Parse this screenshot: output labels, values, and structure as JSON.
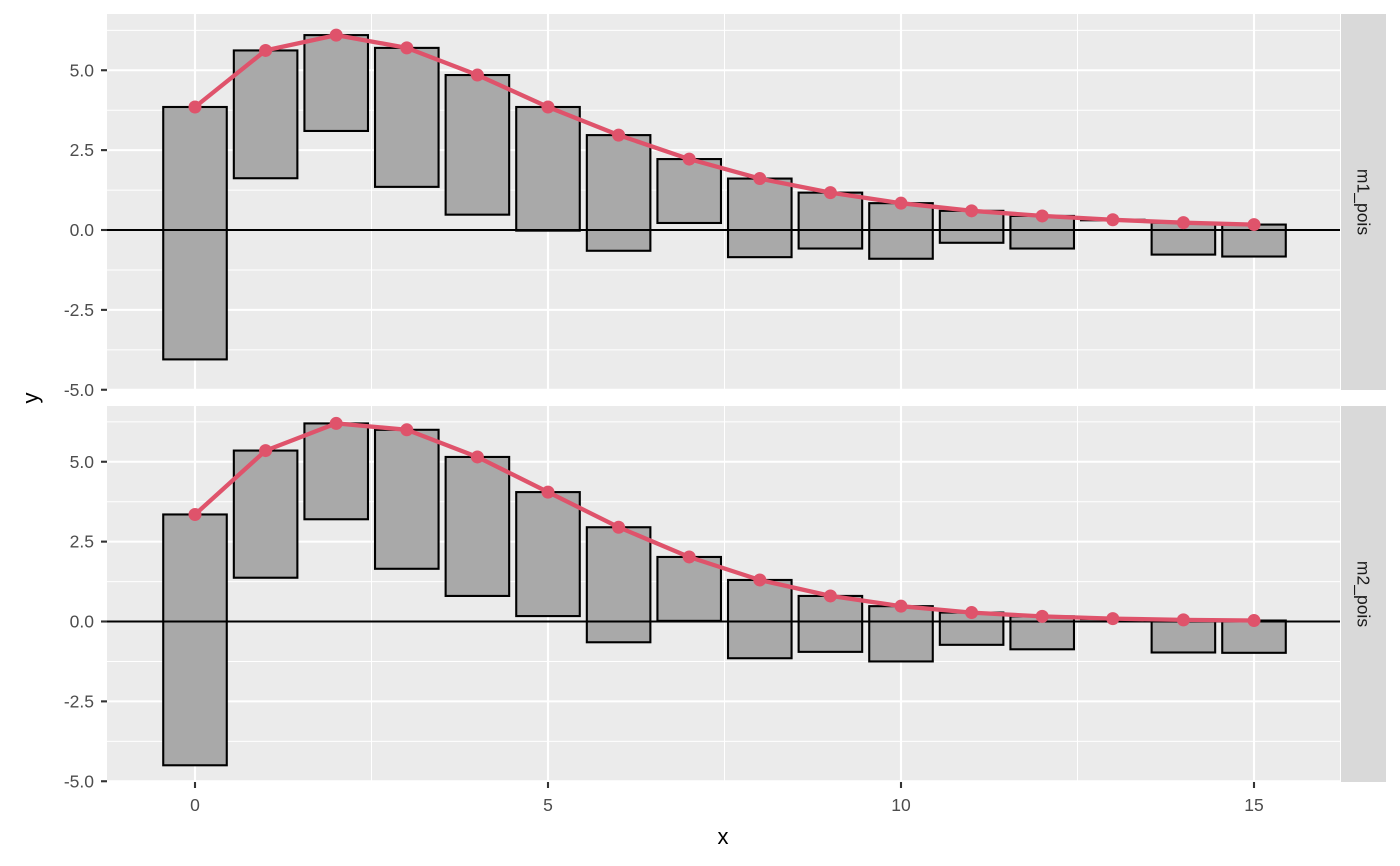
{
  "chart_data": {
    "type": "rootogram",
    "xlabel": "x",
    "ylabel": "y",
    "xlim": [
      -1.2,
      16.2
    ],
    "ylim": [
      -5.0,
      6.5
    ],
    "x_ticks": [
      0,
      5,
      10,
      15
    ],
    "x_tick_labels": [
      "0",
      "5",
      "10",
      "15"
    ],
    "y_ticks": [
      -5.0,
      -2.5,
      0.0,
      2.5,
      5.0
    ],
    "y_tick_labels": [
      "-5.0",
      "-2.5",
      "0.0",
      "2.5",
      "5.0"
    ],
    "grid": true,
    "colors": {
      "bar_fill": "#A9A9A9",
      "bar_outline": "#000000",
      "fitted": "#DF536B",
      "panel": "#EBEBEB",
      "strip": "#D9D9D9"
    },
    "panels": [
      {
        "name": "m1_pois",
        "x": [
          0,
          1,
          2,
          3,
          4,
          5,
          6,
          7,
          8,
          9,
          10,
          11,
          12,
          13,
          14,
          15
        ],
        "bar_top": [
          3.85,
          5.62,
          6.1,
          5.7,
          4.85,
          3.85,
          2.97,
          2.22,
          1.61,
          1.17,
          0.84,
          0.6,
          0.44,
          0.32,
          0.23,
          0.17
        ],
        "bar_bottom": [
          -4.05,
          1.62,
          3.1,
          1.35,
          0.48,
          -0.02,
          -0.65,
          0.22,
          -0.85,
          -0.58,
          -0.9,
          -0.4,
          -0.58,
          0.32,
          -0.77,
          -0.83
        ],
        "fitted": [
          3.85,
          5.62,
          6.1,
          5.7,
          4.85,
          3.85,
          2.97,
          2.22,
          1.61,
          1.17,
          0.84,
          0.6,
          0.44,
          0.32,
          0.23,
          0.17
        ]
      },
      {
        "name": "m2_pois",
        "x": [
          0,
          1,
          2,
          3,
          4,
          5,
          6,
          7,
          8,
          9,
          10,
          11,
          12,
          13,
          14,
          15
        ],
        "bar_top": [
          3.35,
          5.35,
          6.2,
          6.0,
          5.15,
          4.05,
          2.95,
          2.02,
          1.3,
          0.8,
          0.48,
          0.28,
          0.16,
          0.09,
          0.05,
          0.03
        ],
        "bar_bottom": [
          -4.5,
          1.37,
          3.2,
          1.65,
          0.8,
          0.17,
          -0.65,
          0.02,
          -1.15,
          -0.95,
          -1.25,
          -0.73,
          -0.87,
          0.09,
          -0.97,
          -0.98
        ],
        "fitted": [
          3.35,
          5.35,
          6.2,
          6.0,
          5.15,
          4.05,
          2.95,
          2.02,
          1.3,
          0.8,
          0.48,
          0.28,
          0.16,
          0.09,
          0.05,
          0.03
        ]
      }
    ]
  }
}
